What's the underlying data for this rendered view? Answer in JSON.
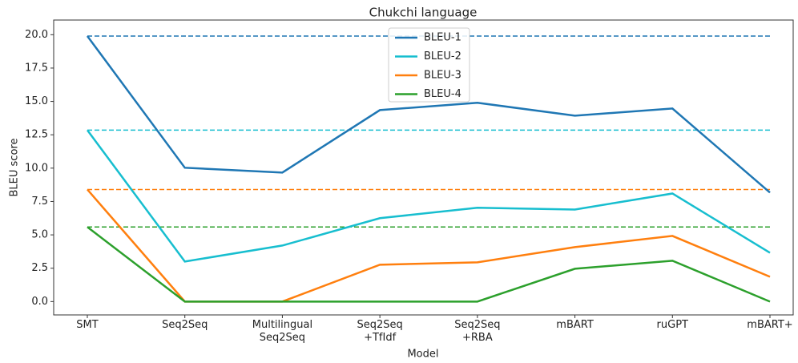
{
  "chart_data": {
    "type": "line",
    "title": "Chukchi language",
    "x_label": "Model",
    "y_label": "BLEU score",
    "categories": [
      "SMT",
      "Seq2Seq",
      "Multilingual\nSeq2Seq",
      "Seq2Seq\n+TfIdf",
      "Seq2Seq\n+RBA",
      "mBART",
      "ruGPT",
      "mBART+"
    ],
    "series": [
      {
        "name": "BLEU-1",
        "color": "#1f77b4",
        "values": [
          19.9,
          10.03,
          9.67,
          14.35,
          14.9,
          13.93,
          14.47,
          8.17
        ]
      },
      {
        "name": "BLEU-2",
        "color": "#17becf",
        "values": [
          12.85,
          3.0,
          4.2,
          6.25,
          7.03,
          6.9,
          8.1,
          3.66
        ]
      },
      {
        "name": "BLEU-3",
        "color": "#ff7f0e",
        "values": [
          8.4,
          0,
          0,
          2.76,
          2.94,
          4.08,
          4.92,
          1.86
        ]
      },
      {
        "name": "BLEU-4",
        "color": "#2ca02c",
        "values": [
          5.59,
          0,
          0,
          0,
          0,
          2.46,
          3.06,
          0
        ]
      }
    ],
    "ylim": [
      -1.0,
      21.1
    ],
    "yticks": [
      {
        "value": 0,
        "label": "0.0"
      },
      {
        "value": 2.5,
        "label": "2.5"
      },
      {
        "value": 5,
        "label": "5.0"
      },
      {
        "value": 7.5,
        "label": "7.5"
      },
      {
        "value": 10,
        "label": "10.0"
      },
      {
        "value": 12.5,
        "label": "12.5"
      },
      {
        "value": 15,
        "label": "15.0"
      },
      {
        "value": 17.5,
        "label": "17.5"
      },
      {
        "value": 20,
        "label": "20.0"
      }
    ],
    "legend": "upper center",
    "reference_lines": "dashed"
  }
}
